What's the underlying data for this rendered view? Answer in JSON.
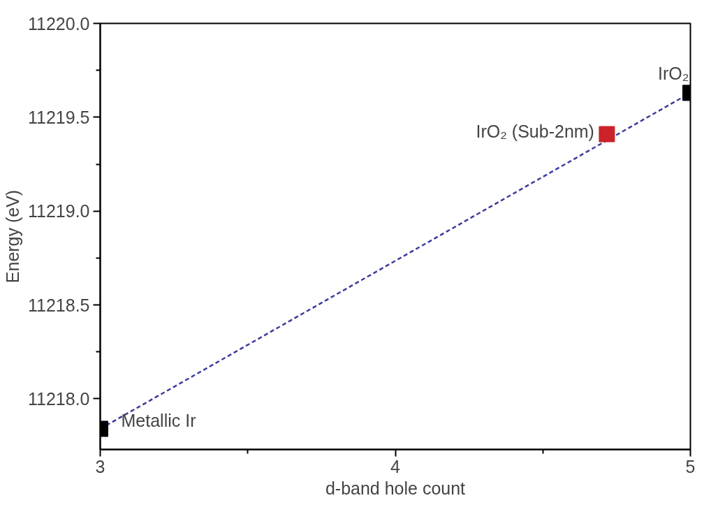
{
  "chart_data": {
    "type": "scatter",
    "xlabel": "d-band hole count",
    "ylabel": "Energy (eV)",
    "xlim": [
      3,
      5
    ],
    "xticks": [
      3,
      4,
      5
    ],
    "ylim": [
      11217.73,
      11220.0
    ],
    "yticks": [
      {
        "value": 11218,
        "label": "11218.0"
      },
      {
        "value": 11218.5,
        "label": "11218.5"
      },
      {
        "value": 11219,
        "label": "11219.0"
      },
      {
        "value": 11219.5,
        "label": "11219.5"
      },
      {
        "value": 11220,
        "label": "11220.0"
      }
    ],
    "grid": false,
    "marker": "square",
    "series": [
      {
        "type": "line",
        "color": "#3b3b9e",
        "line_style": "dashed",
        "marker": "none",
        "x": [
          3,
          5
        ],
        "values": [
          11217.84,
          11219.63
        ]
      },
      {
        "color": "#000000",
        "x": [
          3,
          5
        ],
        "values": [
          11217.84,
          11219.63
        ]
      },
      {
        "color": "#cc2229",
        "x": [
          4.717
        ],
        "values": [
          11219.41
        ]
      }
    ],
    "annotations": [
      {
        "text": "Metallic Ir",
        "x": 3,
        "y": 11217.84
      },
      {
        "text": "IrO₂ (Sub-2nm)",
        "x": 4.717,
        "y": 11219.41
      },
      {
        "text": "IrO₂",
        "x": 5,
        "y": 11219.63
      }
    ]
  }
}
